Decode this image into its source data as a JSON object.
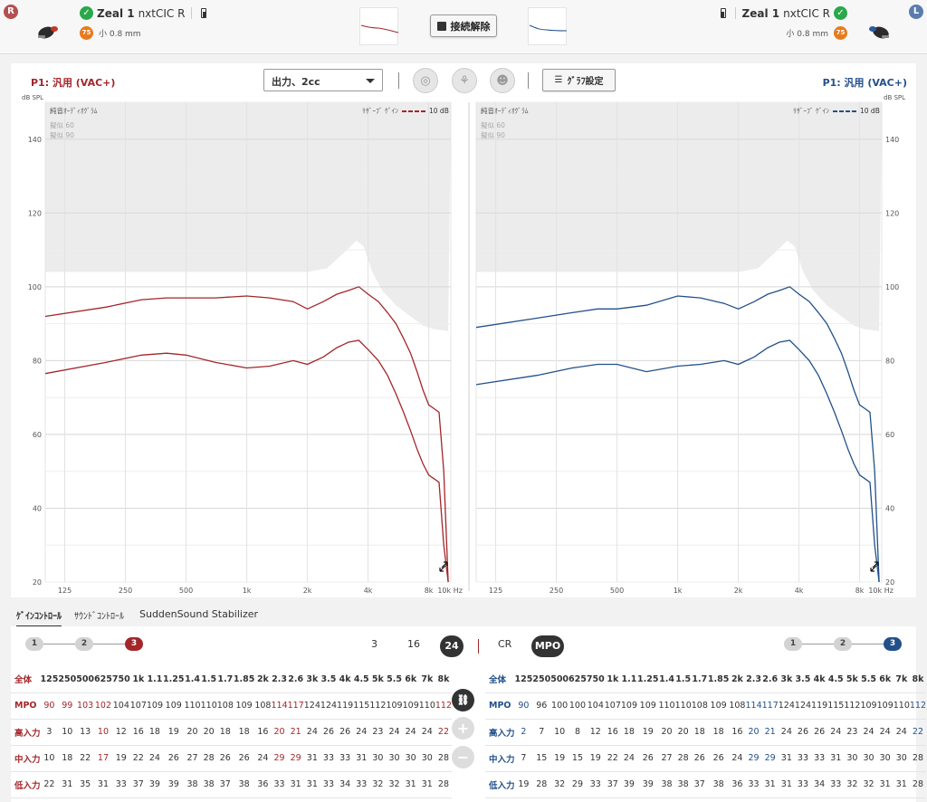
{
  "top_bar": {
    "right_side_badge": "R",
    "left_side_badge": "L",
    "right_device": {
      "brand": "Zeal 1",
      "model": "nxtCIC R",
      "level_badge": "75",
      "vent": "小 0.8 mm"
    },
    "left_device": {
      "brand": "Zeal 1",
      "model": "nxtCIC R",
      "level_badge": "75",
      "vent": "小 0.8 mm"
    },
    "disconnect_label": "接続解除"
  },
  "chart_toolbar": {
    "right_program": "P1: 汎用 (VAC+)",
    "left_program": "P1: 汎用 (VAC+)",
    "output_select_value": "出力、2cc",
    "graph_settings_label": "ｸﾞﾗﾌ設定",
    "icons": [
      "target-icon",
      "sound-tree-icon",
      "head-icon",
      "menu-icon"
    ]
  },
  "chart_data": [
    {
      "type": "line",
      "side": "right",
      "ylabel": "dB SPL",
      "ylim": [
        20,
        150
      ],
      "yticks": [
        20,
        40,
        60,
        80,
        100,
        120,
        140
      ],
      "xticks": [
        "125",
        "250",
        "500",
        "1k",
        "2k",
        "4k",
        "8k",
        "10k Hz"
      ],
      "x_freqs": [
        125,
        250,
        500,
        1000,
        2000,
        4000,
        8000,
        10000
      ],
      "annotations": [
        "純音ｵｰﾃﾞｨｵｸﾞﾗﾑ",
        "ﾘｻﾞｰﾌﾞ ｹﾞｲﾝ",
        "10 dB",
        "擬似 60",
        "擬似 90"
      ],
      "series": [
        {
          "values": [
            [
              100,
              92
            ],
            [
              200,
              94.5
            ],
            [
              300,
              96.5
            ],
            [
              400,
              97
            ],
            [
              500,
              97
            ],
            [
              700,
              97
            ],
            [
              1000,
              97.5
            ],
            [
              1300,
              97
            ],
            [
              1700,
              96
            ],
            [
              2000,
              94
            ],
            [
              2400,
              96
            ],
            [
              2800,
              98
            ],
            [
              3200,
              99
            ],
            [
              3600,
              100
            ],
            [
              4000,
              98
            ],
            [
              4500,
              96
            ],
            [
              5000,
              93
            ],
            [
              5500,
              90
            ],
            [
              6000,
              86
            ],
            [
              6500,
              82
            ],
            [
              7000,
              77
            ],
            [
              7500,
              72
            ],
            [
              8000,
              68
            ],
            [
              8500,
              67
            ],
            [
              9000,
              66
            ],
            [
              9500,
              50
            ],
            [
              10000,
              20
            ]
          ]
        },
        {
          "values": [
            [
              100,
              76.5
            ],
            [
              200,
              79.5
            ],
            [
              300,
              81.5
            ],
            [
              400,
              82
            ],
            [
              500,
              81.5
            ],
            [
              700,
              79.5
            ],
            [
              1000,
              78
            ],
            [
              1300,
              78.5
            ],
            [
              1700,
              80
            ],
            [
              2000,
              79
            ],
            [
              2400,
              81
            ],
            [
              2800,
              83.5
            ],
            [
              3200,
              85
            ],
            [
              3600,
              85.5
            ],
            [
              4000,
              83
            ],
            [
              4500,
              80
            ],
            [
              5000,
              76
            ],
            [
              5500,
              71
            ],
            [
              6000,
              66
            ],
            [
              6500,
              61
            ],
            [
              7000,
              56
            ],
            [
              7500,
              52
            ],
            [
              8000,
              49
            ],
            [
              8500,
              48
            ],
            [
              9000,
              47
            ],
            [
              9500,
              30
            ],
            [
              10000,
              20
            ]
          ]
        }
      ],
      "uncomfortable_level": [
        [
          100,
          104
        ],
        [
          300,
          104
        ],
        [
          600,
          104
        ],
        [
          1000,
          104
        ],
        [
          1500,
          104
        ],
        [
          2000,
          104
        ],
        [
          2500,
          105
        ],
        [
          3000,
          109
        ],
        [
          3500,
          112.5
        ],
        [
          3800,
          111
        ],
        [
          4200,
          104
        ],
        [
          4700,
          99
        ],
        [
          5500,
          95
        ],
        [
          6500,
          92
        ],
        [
          7500,
          89.5
        ],
        [
          8500,
          88.5
        ],
        [
          10000,
          88
        ]
      ]
    },
    {
      "type": "line",
      "side": "left",
      "ylabel": "dB SPL",
      "ylim": [
        20,
        150
      ],
      "yticks": [
        20,
        40,
        60,
        80,
        100,
        120,
        140
      ],
      "xticks": [
        "125",
        "250",
        "500",
        "1k",
        "2k",
        "4k",
        "8k",
        "10k Hz"
      ],
      "x_freqs": [
        125,
        250,
        500,
        1000,
        2000,
        4000,
        8000,
        10000
      ],
      "annotations": [
        "純音ｵｰﾃﾞｨｵｸﾞﾗﾑ",
        "ﾘｻﾞｰﾌﾞ ｹﾞｲﾝ",
        "10 dB",
        "擬似 60",
        "擬似 90"
      ],
      "series": [
        {
          "values": [
            [
              100,
              89
            ],
            [
              200,
              91.5
            ],
            [
              300,
              93
            ],
            [
              400,
              94
            ],
            [
              500,
              94
            ],
            [
              700,
              95
            ],
            [
              1000,
              97.5
            ],
            [
              1300,
              97
            ],
            [
              1700,
              95.5
            ],
            [
              2000,
              94
            ],
            [
              2400,
              96
            ],
            [
              2800,
              98
            ],
            [
              3200,
              99
            ],
            [
              3600,
              100
            ],
            [
              4000,
              98
            ],
            [
              4500,
              96
            ],
            [
              5000,
              93
            ],
            [
              5500,
              90
            ],
            [
              6000,
              86
            ],
            [
              6500,
              82
            ],
            [
              7000,
              77
            ],
            [
              7500,
              72
            ],
            [
              8000,
              68
            ],
            [
              8500,
              67
            ],
            [
              9000,
              66
            ],
            [
              9500,
              50
            ],
            [
              10000,
              20
            ]
          ]
        },
        {
          "values": [
            [
              100,
              73.5
            ],
            [
              200,
              76
            ],
            [
              300,
              78
            ],
            [
              400,
              79
            ],
            [
              500,
              79
            ],
            [
              700,
              77
            ],
            [
              1000,
              78.5
            ],
            [
              1300,
              79
            ],
            [
              1700,
              80
            ],
            [
              2000,
              79
            ],
            [
              2400,
              81
            ],
            [
              2800,
              83.5
            ],
            [
              3200,
              85
            ],
            [
              3600,
              85.5
            ],
            [
              4000,
              83
            ],
            [
              4500,
              80
            ],
            [
              5000,
              76
            ],
            [
              5500,
              71
            ],
            [
              6000,
              66
            ],
            [
              6500,
              61
            ],
            [
              7000,
              56
            ],
            [
              7500,
              52
            ],
            [
              8000,
              49
            ],
            [
              8500,
              48
            ],
            [
              9000,
              47
            ],
            [
              9500,
              30
            ],
            [
              10000,
              20
            ]
          ]
        }
      ],
      "uncomfortable_level": [
        [
          100,
          104
        ],
        [
          300,
          104
        ],
        [
          600,
          104
        ],
        [
          1000,
          104
        ],
        [
          1500,
          104
        ],
        [
          2000,
          104
        ],
        [
          2500,
          105
        ],
        [
          3000,
          109
        ],
        [
          3500,
          112.5
        ],
        [
          3800,
          111
        ],
        [
          4200,
          104
        ],
        [
          4700,
          99
        ],
        [
          5500,
          95
        ],
        [
          6500,
          92
        ],
        [
          7500,
          89.5
        ],
        [
          8500,
          88.5
        ],
        [
          10000,
          88
        ]
      ]
    }
  ],
  "tabs": [
    "ｹﾞｲﾝｺﾝﾄﾛｰﾙ",
    "ｻｳﾝﾄﾞｺﾝﾄﾛｰﾙ",
    "SuddenSound Stabilizer"
  ],
  "gain_control": {
    "steps": [
      "1",
      "2",
      "3"
    ],
    "channels": [
      "3",
      "16",
      "24"
    ],
    "modes": [
      "CR",
      "MPO"
    ],
    "bands": [
      "125",
      "250",
      "500",
      "625",
      "750",
      "1k",
      "1.1",
      "1.25",
      "1.4",
      "1.5",
      "1.7",
      "1.85",
      "2k",
      "2.3",
      "2.6",
      "3k",
      "3.5",
      "4k",
      "4.5",
      "5k",
      "5.5",
      "6k",
      "7k",
      "8k"
    ],
    "right": {
      "all_label": "全体",
      "rows": [
        {
          "label": "MPO",
          "values": [
            "90",
            "99",
            "103",
            "102",
            "104",
            "107",
            "109",
            "109",
            "110",
            "110",
            "108",
            "109",
            "108",
            "114",
            "117",
            "124",
            "124",
            "119",
            "115",
            "112",
            "109",
            "109",
            "110",
            "112"
          ]
        },
        {
          "label": "高入力",
          "values": [
            "3",
            "10",
            "13",
            "10",
            "12",
            "16",
            "18",
            "19",
            "20",
            "20",
            "18",
            "18",
            "16",
            "20",
            "21",
            "24",
            "26",
            "26",
            "24",
            "23",
            "24",
            "24",
            "24",
            "22"
          ]
        },
        {
          "label": "中入力",
          "values": [
            "10",
            "18",
            "22",
            "17",
            "19",
            "22",
            "24",
            "26",
            "27",
            "28",
            "26",
            "26",
            "24",
            "29",
            "29",
            "31",
            "33",
            "33",
            "31",
            "30",
            "30",
            "30",
            "30",
            "28"
          ]
        },
        {
          "label": "低入力",
          "values": [
            "22",
            "31",
            "35",
            "31",
            "33",
            "37",
            "39",
            "39",
            "38",
            "38",
            "37",
            "38",
            "36",
            "33",
            "31",
            "31",
            "33",
            "34",
            "33",
            "32",
            "32",
            "31",
            "31",
            "28"
          ]
        }
      ]
    },
    "left": {
      "all_label": "全体",
      "rows": [
        {
          "label": "MPO",
          "values": [
            "90",
            "96",
            "100",
            "100",
            "104",
            "107",
            "109",
            "109",
            "110",
            "110",
            "108",
            "109",
            "108",
            "114",
            "117",
            "124",
            "124",
            "119",
            "115",
            "112",
            "109",
            "109",
            "110",
            "112"
          ]
        },
        {
          "label": "高入力",
          "values": [
            "2",
            "7",
            "10",
            "8",
            "12",
            "16",
            "18",
            "19",
            "20",
            "20",
            "18",
            "18",
            "16",
            "20",
            "21",
            "24",
            "26",
            "26",
            "24",
            "23",
            "24",
            "24",
            "24",
            "22"
          ]
        },
        {
          "label": "中入力",
          "values": [
            "7",
            "15",
            "19",
            "15",
            "19",
            "22",
            "24",
            "26",
            "27",
            "28",
            "26",
            "26",
            "24",
            "29",
            "29",
            "31",
            "33",
            "33",
            "31",
            "30",
            "30",
            "30",
            "30",
            "28"
          ]
        },
        {
          "label": "低入力",
          "values": [
            "19",
            "28",
            "32",
            "29",
            "33",
            "37",
            "39",
            "39",
            "38",
            "38",
            "37",
            "38",
            "36",
            "33",
            "31",
            "31",
            "33",
            "34",
            "33",
            "32",
            "32",
            "31",
            "31",
            "28"
          ]
        }
      ]
    }
  },
  "colors": {
    "right": "#a3262a",
    "left": "#22508a",
    "uncomfortable_area": "#ececec"
  }
}
